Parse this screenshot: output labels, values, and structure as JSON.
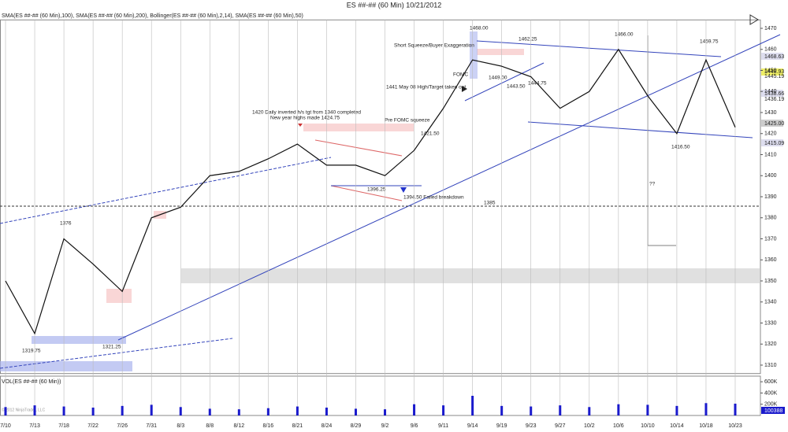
{
  "title": "ES ##-## (60 Min)  10/21/2012",
  "indicators": "SMA(ES ##-## (60 Min),100), SMA(ES ##-## (60 Min),200), Bollinger(ES ##-## (60 Min),2,14), SMA(ES ##-## (60 Min),50)",
  "copyright": "© 2012 NinjaTrader, LLC",
  "chart_data": [
    {
      "type": "line",
      "name": "ES ##-## (60 Min)",
      "color": "#111111",
      "categories": [
        "7/10",
        "7/13",
        "7/18",
        "7/22",
        "7/26",
        "7/31",
        "8/3",
        "8/8",
        "8/12",
        "8/16",
        "8/21",
        "8/24",
        "8/29",
        "9/2",
        "9/6",
        "9/11",
        "9/14",
        "9/19",
        "9/23",
        "9/27",
        "10/2",
        "10/6",
        "10/10",
        "10/14",
        "10/18",
        "10/23"
      ],
      "values": [
        1350,
        1325,
        1370,
        1358,
        1345,
        1380,
        1385,
        1400,
        1402,
        1408,
        1415,
        1405,
        1405,
        1400,
        1412,
        1432,
        1455,
        1452,
        1447,
        1432,
        1440,
        1460,
        1438,
        1420,
        1455,
        1423
      ],
      "ylim": [
        1306,
        1474
      ],
      "yticks": [
        1310,
        1320,
        1330,
        1340,
        1350,
        1360,
        1370,
        1380,
        1390,
        1400,
        1410,
        1420,
        1430,
        1440,
        1450,
        1460,
        1470
      ],
      "price_labels": [
        "1468.63",
        "1448.93",
        "1445.19",
        "1438.66",
        "1436.19",
        "1425.00",
        "1415.09"
      ],
      "annotations": [
        "1376",
        "1319.75",
        "1321.25",
        "1420 Daily inverted h/s tgt from 1340 completed",
        "New year highs made 1424.75",
        "Pre FOMC squeeze",
        "1421.50",
        "1396.25",
        "1394.50 Failed breakdown",
        "1385",
        "1441 May 08 High/Target taken out",
        "FOMC",
        "Short Squeeze/Buyer Exaggeration",
        "1468.00",
        "1449.00",
        "1443.50",
        "1444.75",
        "1462.25",
        "1466.00",
        "1459.75",
        "1416.50",
        "??"
      ]
    },
    {
      "type": "bar",
      "name": "VOL(ES ##-## (60 Min))",
      "color": "#1a1acc",
      "values": [
        150000,
        180000,
        160000,
        140000,
        170000,
        190000,
        150000,
        120000,
        110000,
        130000,
        160000,
        140000,
        120000,
        110000,
        200000,
        180000,
        350000,
        170000,
        160000,
        180000,
        150000,
        200000,
        190000,
        170000,
        220000,
        210000
      ],
      "ylim": [
        0,
        700000
      ],
      "yticks": [
        {
          "value": 600000,
          "label": "600K"
        },
        {
          "value": 400000,
          "label": "400K"
        },
        {
          "value": 200000,
          "label": "200K"
        }
      ],
      "last_label": "100388"
    }
  ]
}
